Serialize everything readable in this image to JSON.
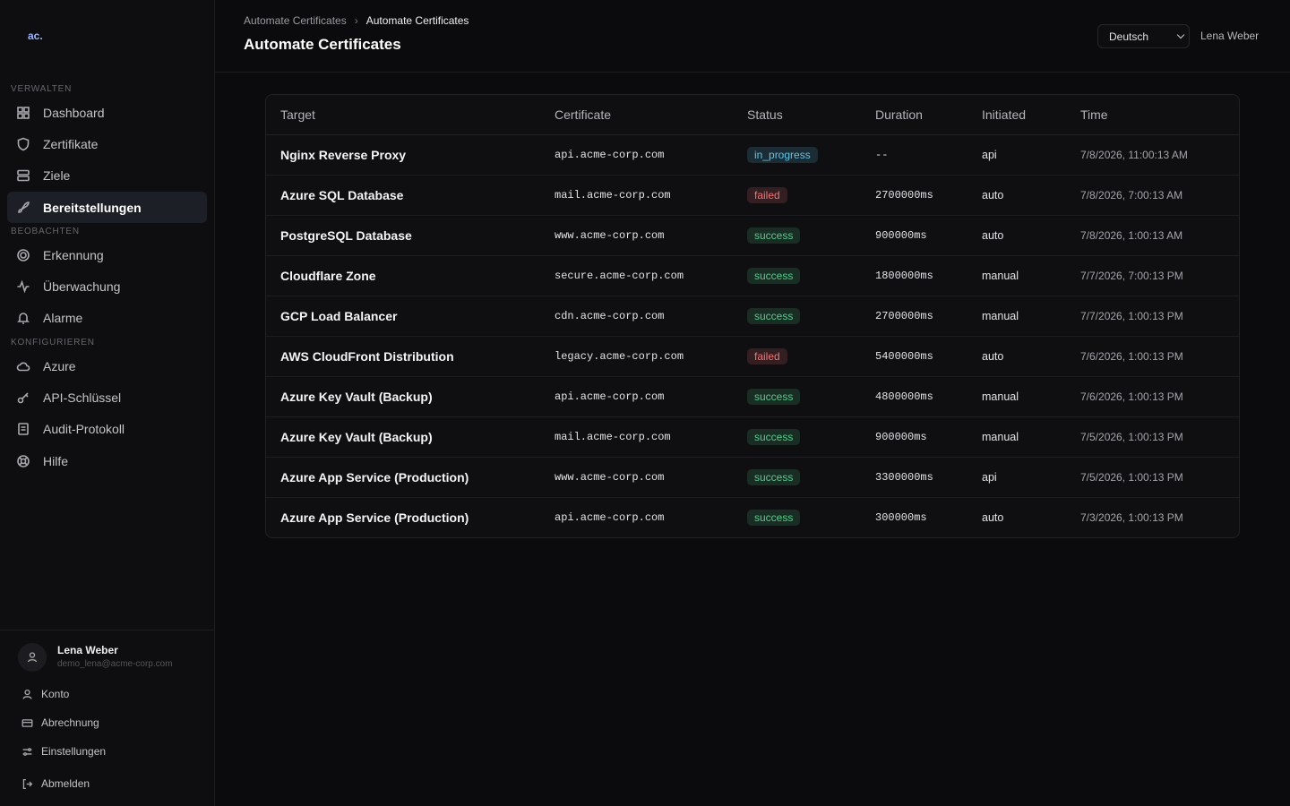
{
  "sidebar": {
    "logo": "ac.",
    "sections": [
      {
        "title": "VERWALTEN",
        "items": [
          "Dashboard",
          "Zertifikate",
          "Ziele",
          "Bereitstellungen"
        ]
      },
      {
        "title": "BEOBACHTEN",
        "items": [
          "Erkennung",
          "Überwachung",
          "Alarme"
        ]
      },
      {
        "title": "KONFIGURIEREN",
        "items": [
          "Azure",
          "API-Schlüssel",
          "Audit-Protokoll",
          "Hilfe"
        ]
      }
    ],
    "user": {
      "name": "Lena Weber",
      "email": "demo_lena@acme-corp.com"
    },
    "menu": [
      "Konto",
      "Abrechnung",
      "Einstellungen",
      "Abmelden"
    ]
  },
  "header": {
    "breadcrumb": [
      "Automate Certificates",
      "Automate Certificates"
    ],
    "title": "Automate Certificates",
    "language": "Deutsch",
    "user": "Lena Weber"
  },
  "status_colors": {
    "in_progress": "#5cc6ea",
    "failed": "#f07474",
    "success": "#4fd08a"
  },
  "table": {
    "columns": [
      "Target",
      "Certificate",
      "Status",
      "Duration",
      "Initiated",
      "Time"
    ],
    "rows": [
      [
        "Nginx Reverse Proxy",
        "api.acme-corp.com",
        "in_progress",
        "--",
        "api",
        "7/8/2026, 11:00:13 AM"
      ],
      [
        "Azure SQL Database",
        "mail.acme-corp.com",
        "failed",
        "2700000ms",
        "auto",
        "7/8/2026, 7:00:13 AM"
      ],
      [
        "PostgreSQL Database",
        "www.acme-corp.com",
        "success",
        "900000ms",
        "auto",
        "7/8/2026, 1:00:13 AM"
      ],
      [
        "Cloudflare Zone",
        "secure.acme-corp.com",
        "success",
        "1800000ms",
        "manual",
        "7/7/2026, 7:00:13 PM"
      ],
      [
        "GCP Load Balancer",
        "cdn.acme-corp.com",
        "success",
        "2700000ms",
        "manual",
        "7/7/2026, 1:00:13 PM"
      ],
      [
        "AWS CloudFront Distribution",
        "legacy.acme-corp.com",
        "failed",
        "5400000ms",
        "auto",
        "7/6/2026, 1:00:13 PM"
      ],
      [
        "Azure Key Vault (Backup)",
        "api.acme-corp.com",
        "success",
        "4800000ms",
        "manual",
        "7/6/2026, 1:00:13 PM"
      ],
      [
        "Azure Key Vault (Backup)",
        "mail.acme-corp.com",
        "success",
        "900000ms",
        "manual",
        "7/5/2026, 1:00:13 PM"
      ],
      [
        "Azure App Service (Production)",
        "www.acme-corp.com",
        "success",
        "3300000ms",
        "api",
        "7/5/2026, 1:00:13 PM"
      ],
      [
        "Azure App Service (Production)",
        "api.acme-corp.com",
        "success",
        "300000ms",
        "auto",
        "7/3/2026, 1:00:13 PM"
      ]
    ]
  }
}
